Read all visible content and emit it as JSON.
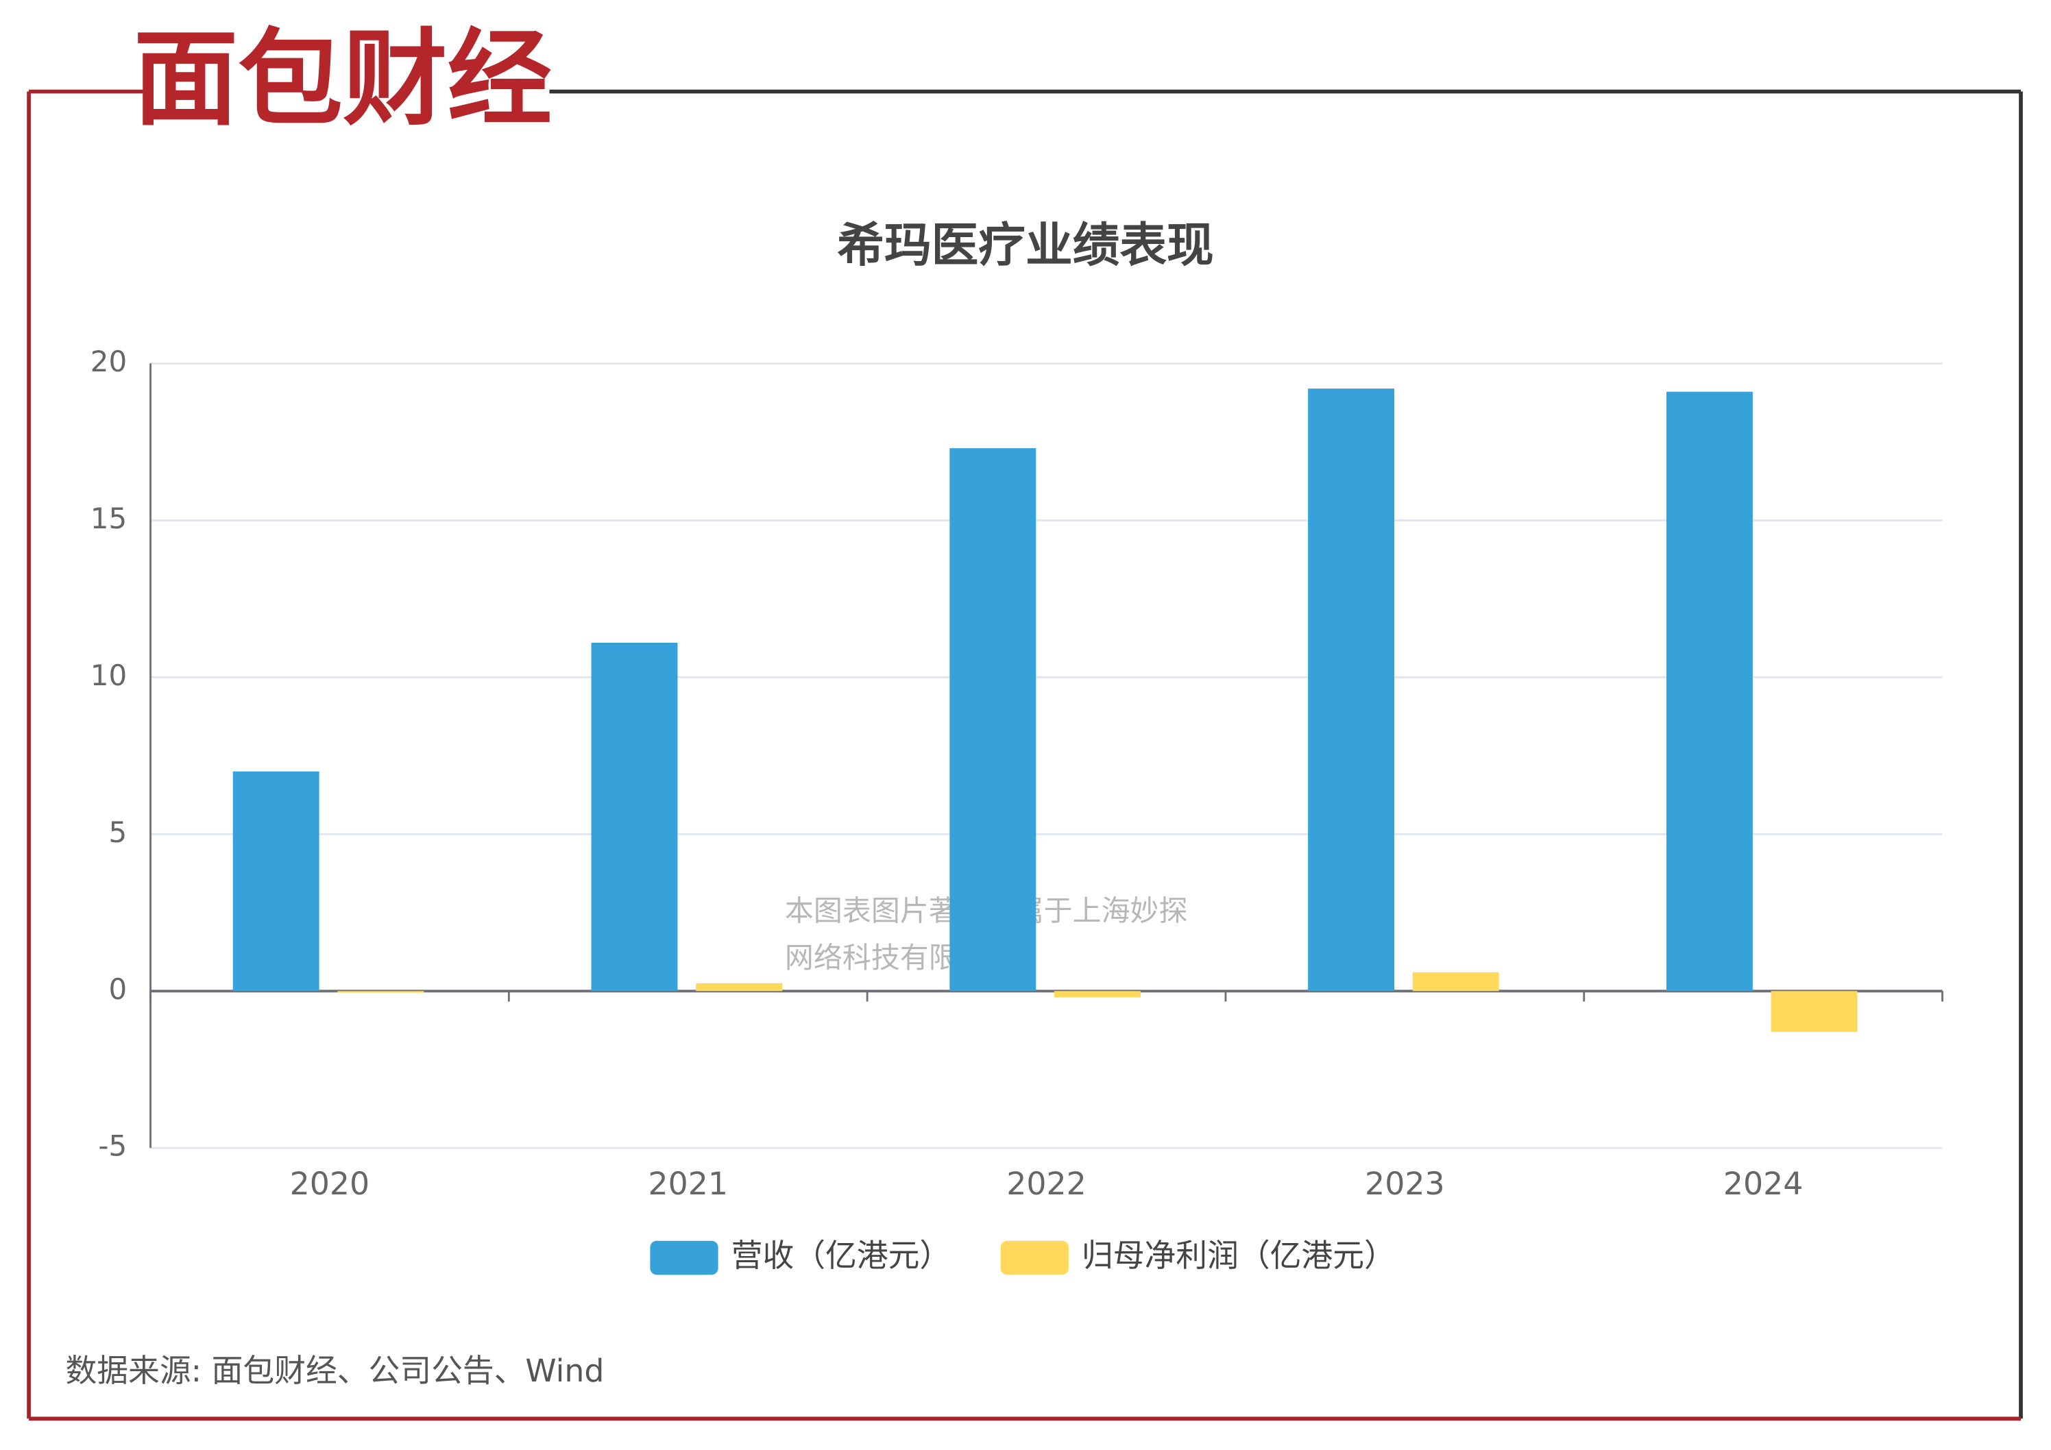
{
  "logo": "面包财经",
  "source": "数据来源: 面包财经、公司公告、Wind",
  "watermark": [
    "本图表图片著作权属于上海妙探",
    "网络科技有限公司"
  ],
  "chart_data": {
    "type": "bar",
    "title": "希玛医疗业绩表现",
    "categories": [
      "2020",
      "2021",
      "2022",
      "2023",
      "2024"
    ],
    "series": [
      {
        "name": "营收（亿港元）",
        "color": "#37a2da",
        "values": [
          7.0,
          11.1,
          17.3,
          19.2,
          19.1
        ]
      },
      {
        "name": "归母净利润（亿港元）",
        "color": "#ffd85c",
        "values": [
          -0.05,
          0.25,
          -0.2,
          0.6,
          -1.3
        ]
      }
    ],
    "ylim": [
      -5,
      20
    ],
    "yticks": [
      -5,
      0,
      5,
      10,
      15,
      20
    ],
    "grid": true,
    "legend": "bottom"
  }
}
